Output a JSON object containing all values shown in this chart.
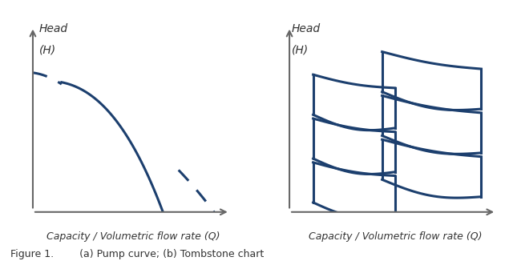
{
  "blue_color": "#1C3F6E",
  "line_width": 2.2,
  "axis_color": "#666666",
  "font_color": "#333333",
  "fig_width": 6.4,
  "fig_height": 3.31,
  "caption": "Figure 1.        (a) Pump curve; (b) Tombstone chart",
  "xlabel": "Capacity / Volumetric flow rate (Q)",
  "ylabel_line1": "Head",
  "ylabel_line2": "(H)"
}
